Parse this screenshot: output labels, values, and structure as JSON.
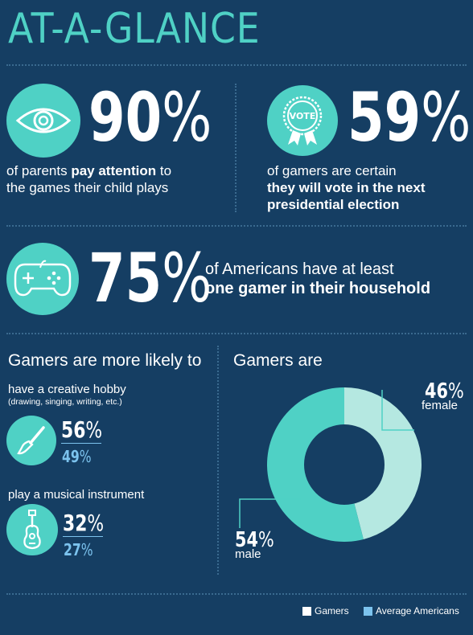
{
  "title": "AT-A-GLANCE",
  "stats": {
    "parents": {
      "number": "90",
      "pct": "%",
      "text_pre": "of parents ",
      "text_bold": "pay attention",
      "text_mid": " to",
      "text_line2": "the games their child plays",
      "icon": "eye-icon"
    },
    "vote": {
      "number": "59",
      "pct": "%",
      "badge_text": "VOTE",
      "text_line1": "of gamers are certain",
      "text_bold1": "they will vote in the next",
      "text_bold2": "presidential election",
      "icon": "vote-ribbon-icon"
    },
    "household": {
      "number": "75",
      "pct": "%",
      "text_line1": "of Americans have at least",
      "text_bold": "one gamer in their household",
      "icon": "gamepad-icon"
    }
  },
  "likely": {
    "heading": "Gamers are more likely to",
    "items": [
      {
        "label": "have a creative hobby",
        "sublabel": "(drawing, singing, writing, etc.)",
        "gamers": "56",
        "average": "49",
        "gamers_value": 56,
        "average_value": 49,
        "pct": "%",
        "icon": "paintbrush-icon"
      },
      {
        "label": "play a musical instrument",
        "gamers": "32",
        "average": "27",
        "gamers_value": 32,
        "average_value": 27,
        "pct": "%",
        "icon": "guitar-icon"
      }
    ]
  },
  "gender": {
    "heading": "Gamers are",
    "female_number": "46",
    "female_label": "female",
    "male_number": "54",
    "male_label": "male",
    "pct": "%",
    "female_color": "#b5e8e1",
    "male_color": "#4fd1c5"
  },
  "chart_data": {
    "type": "pie",
    "title": "Gamers are",
    "categories": [
      "female",
      "male"
    ],
    "values": [
      46,
      54
    ],
    "colors": [
      "#b5e8e1",
      "#4fd1c5"
    ]
  },
  "legend": {
    "gamers": "Gamers",
    "average": "Average Americans",
    "gamers_color": "#ffffff",
    "average_color": "#7cc3ee"
  },
  "colors": {
    "background": "#153e63",
    "accent": "#4fd1c5",
    "light_blue": "#7cc3ee",
    "dotted_line": "#3a6a8f"
  }
}
